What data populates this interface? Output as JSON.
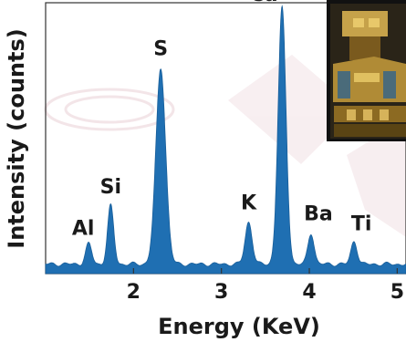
{
  "chart_data": {
    "type": "area",
    "xlabel": "Energy (KeV)",
    "ylabel": "Intensity (counts)",
    "xlim": [
      1.0,
      5.1
    ],
    "ylim": [
      0,
      100
    ],
    "xticks": [
      "2",
      "3",
      "4",
      "5"
    ],
    "xtick_values": [
      2,
      3,
      4,
      5
    ],
    "grid": false,
    "fill_color": "#1f6fb2",
    "baseline": 3.5,
    "peaks": [
      {
        "label": "Al",
        "x": 1.49,
        "y": 11
      },
      {
        "label": "Si",
        "x": 1.74,
        "y": 25
      },
      {
        "label": "S",
        "x": 2.31,
        "y": 76
      },
      {
        "label": "K",
        "x": 3.31,
        "y": 19
      },
      {
        "label": "Ca",
        "x": 3.69,
        "y": 98
      },
      {
        "label": "Ba",
        "x": 4.02,
        "y": 15
      },
      {
        "label": "Ti",
        "x": 4.51,
        "y": 12
      }
    ]
  },
  "inset": {
    "icon": "artifact-photo-icon"
  }
}
